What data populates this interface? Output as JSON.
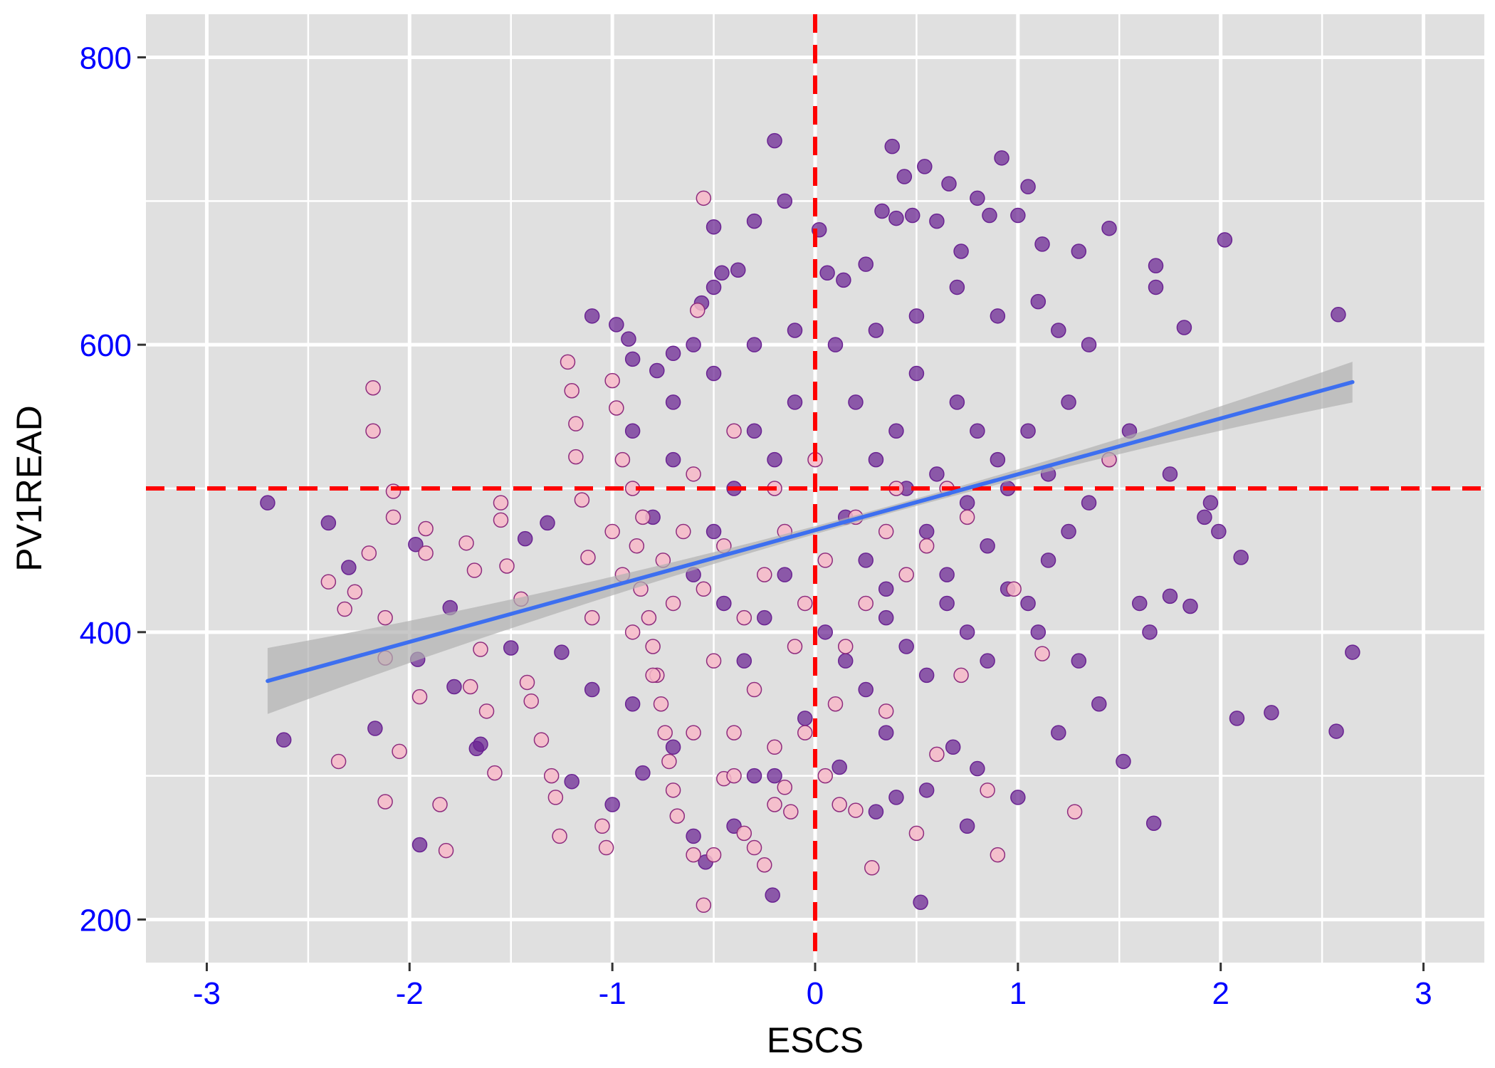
{
  "chart_data": {
    "type": "scatter",
    "xlabel": "ESCS",
    "ylabel": "PV1READ",
    "xlim": [
      -3.3,
      3.3
    ],
    "ylim": [
      170,
      830
    ],
    "x_ticks": [
      -3,
      -2,
      -1,
      0,
      1,
      2,
      3
    ],
    "x_tick_labels": [
      "-3",
      "-2",
      "-1",
      "0",
      "1",
      "2",
      "3"
    ],
    "y_ticks": [
      200,
      400,
      600,
      800
    ],
    "y_tick_labels": [
      "200",
      "400",
      "600",
      "800"
    ],
    "grid": true,
    "legend": "none",
    "colors": {
      "panel_background": "#e0e0e0",
      "grid": "#ffffff",
      "tick_label": "#0000ff",
      "reference_line": "#ff0000",
      "trend_line": "#3d6ff0",
      "confidence_band": "#b0b0b0",
      "group_a_fill": "#6a2392",
      "group_b_fill": "#f7b8c8",
      "group_b_edge": "#8e2c7e"
    },
    "reference_lines": {
      "x": 0,
      "y": 500,
      "style": "dashed"
    },
    "regression": {
      "x": [
        -2.7,
        2.65
      ],
      "y": [
        366,
        574
      ],
      "confidence_band": true
    },
    "series": [
      {
        "points": [
          [
            -2.7,
            490
          ],
          [
            -2.62,
            325
          ],
          [
            -2.4,
            476
          ],
          [
            -2.3,
            445
          ],
          [
            -2.17,
            333
          ],
          [
            -1.97,
            461
          ],
          [
            -1.96,
            381
          ],
          [
            -1.8,
            417
          ],
          [
            -1.78,
            362
          ],
          [
            -1.67,
            319
          ],
          [
            -1.65,
            322
          ],
          [
            -1.5,
            389
          ],
          [
            -1.43,
            465
          ],
          [
            -1.32,
            476
          ],
          [
            -1.25,
            386
          ],
          [
            -1.1,
            620
          ],
          [
            -0.98,
            614
          ],
          [
            -0.92,
            604
          ],
          [
            -0.9,
            590
          ],
          [
            -0.78,
            582
          ],
          [
            -0.7,
            594
          ],
          [
            -0.6,
            600
          ],
          [
            -0.56,
            629
          ],
          [
            -0.5,
            640
          ],
          [
            -0.5,
            682
          ],
          [
            -0.46,
            650
          ],
          [
            -0.38,
            652
          ],
          [
            -0.3,
            686
          ],
          [
            -0.2,
            742
          ],
          [
            -0.15,
            700
          ],
          [
            0.02,
            680
          ],
          [
            0.06,
            650
          ],
          [
            0.14,
            645
          ],
          [
            0.25,
            656
          ],
          [
            0.33,
            693
          ],
          [
            0.4,
            688
          ],
          [
            0.38,
            738
          ],
          [
            0.44,
            717
          ],
          [
            0.48,
            690
          ],
          [
            0.54,
            724
          ],
          [
            0.6,
            686
          ],
          [
            0.66,
            712
          ],
          [
            0.72,
            665
          ],
          [
            0.8,
            702
          ],
          [
            0.86,
            690
          ],
          [
            0.92,
            730
          ],
          [
            1.0,
            690
          ],
          [
            1.05,
            710
          ],
          [
            1.12,
            670
          ],
          [
            1.3,
            665
          ],
          [
            1.45,
            681
          ],
          [
            1.68,
            655
          ],
          [
            2.02,
            673
          ],
          [
            2.58,
            621
          ],
          [
            1.68,
            640
          ],
          [
            1.82,
            612
          ],
          [
            1.55,
            540
          ],
          [
            1.75,
            510
          ],
          [
            1.92,
            480
          ],
          [
            1.95,
            490
          ],
          [
            1.99,
            470
          ],
          [
            2.1,
            452
          ],
          [
            1.85,
            418
          ],
          [
            1.6,
            420
          ],
          [
            1.75,
            425
          ],
          [
            1.65,
            400
          ],
          [
            1.52,
            310
          ],
          [
            1.67,
            267
          ],
          [
            2.08,
            340
          ],
          [
            2.25,
            344
          ],
          [
            2.57,
            331
          ],
          [
            2.65,
            386
          ],
          [
            0.52,
            212
          ],
          [
            -0.21,
            217
          ],
          [
            -0.54,
            240
          ],
          [
            -0.6,
            258
          ],
          [
            -1.95,
            252
          ],
          [
            -1.2,
            296
          ],
          [
            -0.85,
            302
          ],
          [
            -0.3,
            300
          ],
          [
            -1.0,
            280
          ],
          [
            -0.4,
            265
          ],
          [
            0.12,
            306
          ],
          [
            0.4,
            285
          ],
          [
            0.55,
            290
          ],
          [
            0.8,
            305
          ],
          [
            1.0,
            285
          ],
          [
            1.2,
            330
          ],
          [
            0.75,
            265
          ],
          [
            0.3,
            275
          ],
          [
            -0.7,
            320
          ],
          [
            -0.9,
            350
          ],
          [
            -1.1,
            360
          ],
          [
            -0.2,
            300
          ],
          [
            -0.05,
            340
          ],
          [
            0.35,
            330
          ],
          [
            0.68,
            320
          ],
          [
            1.4,
            350
          ],
          [
            1.3,
            380
          ],
          [
            1.1,
            400
          ],
          [
            0.2,
            560
          ],
          [
            0.3,
            520
          ],
          [
            0.4,
            540
          ],
          [
            0.5,
            580
          ],
          [
            0.6,
            510
          ],
          [
            0.7,
            560
          ],
          [
            0.8,
            540
          ],
          [
            0.9,
            520
          ],
          [
            0.15,
            480
          ],
          [
            0.25,
            450
          ],
          [
            0.35,
            430
          ],
          [
            0.45,
            500
          ],
          [
            0.55,
            470
          ],
          [
            0.65,
            440
          ],
          [
            0.75,
            490
          ],
          [
            0.85,
            460
          ],
          [
            0.95,
            500
          ],
          [
            1.05,
            540
          ],
          [
            1.15,
            510
          ],
          [
            1.25,
            560
          ],
          [
            -0.1,
            560
          ],
          [
            -0.2,
            520
          ],
          [
            -0.3,
            540
          ],
          [
            -0.4,
            500
          ],
          [
            -0.5,
            470
          ],
          [
            -0.6,
            440
          ],
          [
            -0.7,
            520
          ],
          [
            -0.8,
            480
          ],
          [
            -0.15,
            440
          ],
          [
            -0.25,
            410
          ],
          [
            -0.35,
            380
          ],
          [
            -0.45,
            420
          ],
          [
            0.05,
            400
          ],
          [
            0.15,
            380
          ],
          [
            0.25,
            360
          ],
          [
            0.35,
            410
          ],
          [
            0.45,
            390
          ],
          [
            0.55,
            370
          ],
          [
            0.65,
            420
          ],
          [
            0.75,
            400
          ],
          [
            0.85,
            380
          ],
          [
            0.95,
            430
          ],
          [
            1.05,
            420
          ],
          [
            1.15,
            450
          ],
          [
            1.25,
            470
          ],
          [
            1.35,
            490
          ],
          [
            1.45,
            520
          ],
          [
            1.35,
            600
          ],
          [
            1.2,
            610
          ],
          [
            1.1,
            630
          ],
          [
            0.9,
            620
          ],
          [
            0.7,
            640
          ],
          [
            0.5,
            620
          ],
          [
            0.3,
            610
          ],
          [
            0.1,
            600
          ],
          [
            -0.1,
            610
          ],
          [
            -0.3,
            600
          ],
          [
            -0.5,
            580
          ],
          [
            -0.7,
            560
          ],
          [
            -0.9,
            540
          ]
        ]
      },
      {
        "points": [
          [
            -2.18,
            570
          ],
          [
            -2.18,
            540
          ],
          [
            -2.4,
            435
          ],
          [
            -2.27,
            428
          ],
          [
            -2.32,
            416
          ],
          [
            -2.2,
            455
          ],
          [
            -2.08,
            498
          ],
          [
            -2.08,
            480
          ],
          [
            -2.12,
            410
          ],
          [
            -2.12,
            382
          ],
          [
            -2.35,
            310
          ],
          [
            -2.12,
            282
          ],
          [
            -2.05,
            317
          ],
          [
            -1.92,
            455
          ],
          [
            -1.92,
            472
          ],
          [
            -1.95,
            355
          ],
          [
            -1.85,
            280
          ],
          [
            -1.82,
            248
          ],
          [
            -1.72,
            462
          ],
          [
            -1.68,
            443
          ],
          [
            -1.7,
            362
          ],
          [
            -1.65,
            388
          ],
          [
            -1.62,
            345
          ],
          [
            -1.58,
            302
          ],
          [
            -1.55,
            490
          ],
          [
            -1.55,
            478
          ],
          [
            -1.52,
            446
          ],
          [
            -1.45,
            423
          ],
          [
            -1.42,
            365
          ],
          [
            -1.4,
            352
          ],
          [
            -1.35,
            325
          ],
          [
            -1.3,
            300
          ],
          [
            -1.28,
            285
          ],
          [
            -1.26,
            258
          ],
          [
            -1.22,
            588
          ],
          [
            -1.2,
            568
          ],
          [
            -1.18,
            545
          ],
          [
            -1.18,
            522
          ],
          [
            -1.15,
            492
          ],
          [
            -1.12,
            452
          ],
          [
            -1.1,
            410
          ],
          [
            -1.05,
            265
          ],
          [
            -1.03,
            250
          ],
          [
            -1.0,
            575
          ],
          [
            -0.98,
            556
          ],
          [
            -0.95,
            520
          ],
          [
            -0.9,
            500
          ],
          [
            -0.88,
            460
          ],
          [
            -0.86,
            430
          ],
          [
            -0.82,
            410
          ],
          [
            -0.8,
            390
          ],
          [
            -0.78,
            370
          ],
          [
            -0.76,
            350
          ],
          [
            -0.74,
            330
          ],
          [
            -0.72,
            310
          ],
          [
            -0.7,
            290
          ],
          [
            -0.68,
            272
          ],
          [
            -0.6,
            245
          ],
          [
            -0.55,
            702
          ],
          [
            -0.58,
            624
          ],
          [
            -0.55,
            210
          ],
          [
            -0.5,
            245
          ],
          [
            -0.45,
            298
          ],
          [
            -0.4,
            330
          ],
          [
            -0.35,
            260
          ],
          [
            -0.3,
            250
          ],
          [
            -0.25,
            238
          ],
          [
            -0.2,
            280
          ],
          [
            -0.15,
            292
          ],
          [
            -0.12,
            275
          ],
          [
            -0.05,
            330
          ],
          [
            0.05,
            300
          ],
          [
            0.12,
            280
          ],
          [
            0.2,
            276
          ],
          [
            0.28,
            236
          ],
          [
            0.35,
            345
          ],
          [
            0.5,
            260
          ],
          [
            0.6,
            315
          ],
          [
            0.72,
            370
          ],
          [
            0.85,
            290
          ],
          [
            0.9,
            245
          ],
          [
            0.98,
            430
          ],
          [
            1.12,
            385
          ],
          [
            1.28,
            275
          ],
          [
            1.45,
            520
          ],
          [
            -0.95,
            440
          ],
          [
            -0.85,
            480
          ],
          [
            -0.75,
            450
          ],
          [
            -0.65,
            470
          ],
          [
            -0.55,
            430
          ],
          [
            -0.45,
            460
          ],
          [
            -0.35,
            410
          ],
          [
            -0.25,
            440
          ],
          [
            -0.15,
            470
          ],
          [
            -0.05,
            420
          ],
          [
            0.05,
            450
          ],
          [
            0.15,
            390
          ],
          [
            0.25,
            420
          ],
          [
            0.35,
            470
          ],
          [
            0.45,
            440
          ],
          [
            0.55,
            460
          ],
          [
            0.65,
            500
          ],
          [
            0.75,
            480
          ],
          [
            -0.9,
            400
          ],
          [
            -0.7,
            420
          ],
          [
            -0.5,
            380
          ],
          [
            -0.3,
            360
          ],
          [
            -0.1,
            390
          ],
          [
            0.1,
            350
          ],
          [
            -0.6,
            510
          ],
          [
            -0.4,
            540
          ],
          [
            -0.2,
            500
          ],
          [
            0.0,
            520
          ],
          [
            0.2,
            480
          ],
          [
            0.4,
            500
          ],
          [
            -1.0,
            470
          ],
          [
            -0.8,
            370
          ],
          [
            -0.6,
            330
          ],
          [
            -0.4,
            300
          ],
          [
            -0.2,
            320
          ]
        ]
      }
    ]
  }
}
